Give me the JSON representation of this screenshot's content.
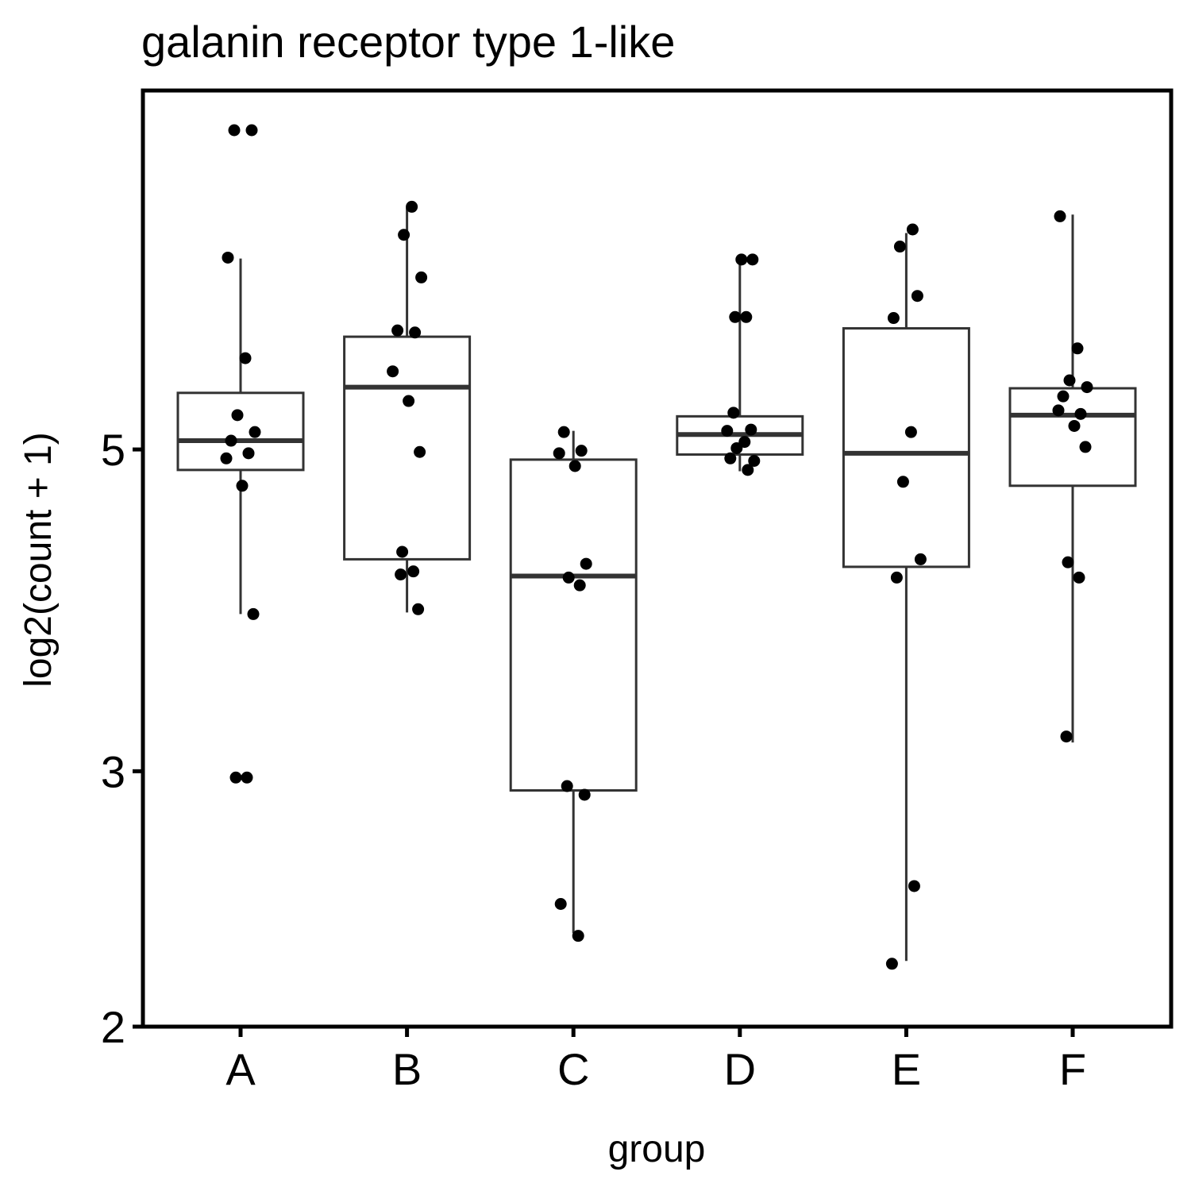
{
  "chart_data": {
    "type": "box",
    "title": "galanin receptor type 1-like",
    "xlabel": "group",
    "ylabel": "log2(count + 1)",
    "y_scale": "log",
    "ylim": [
      2,
      8.3
    ],
    "yticks": [
      2,
      3,
      5
    ],
    "categories": [
      "A",
      "B",
      "C",
      "D",
      "E",
      "F"
    ],
    "boxes": [
      {
        "group": "A",
        "whisker_low": 3.85,
        "q1": 4.84,
        "median": 5.07,
        "q3": 5.47,
        "whisker_high": 6.77
      },
      {
        "group": "B",
        "whisker_low": 3.86,
        "q1": 4.2,
        "median": 5.52,
        "q3": 5.98,
        "whisker_high": 7.34
      },
      {
        "group": "C",
        "whisker_low": 2.32,
        "q1": 2.91,
        "median": 4.09,
        "q3": 4.92,
        "whisker_high": 5.15
      },
      {
        "group": "D",
        "whisker_low": 4.83,
        "q1": 4.96,
        "median": 5.12,
        "q3": 5.27,
        "whisker_high": 6.75
      },
      {
        "group": "E",
        "whisker_low": 2.22,
        "q1": 4.15,
        "median": 4.97,
        "q3": 6.06,
        "whisker_high": 7.05
      },
      {
        "group": "F",
        "whisker_low": 3.14,
        "q1": 4.72,
        "median": 5.28,
        "q3": 5.51,
        "whisker_high": 7.26
      }
    ],
    "points": [
      {
        "group": "A",
        "values": [
          8.3,
          8.3,
          6.78,
          5.78,
          5.28,
          5.14,
          5.07,
          4.97,
          4.93,
          4.72,
          3.85,
          2.97,
          2.97
        ]
      },
      {
        "group": "B",
        "values": [
          7.35,
          7.03,
          6.57,
          6.04,
          6.02,
          5.66,
          5.4,
          4.98,
          4.25,
          4.12,
          4.1,
          3.88
        ]
      },
      {
        "group": "C",
        "values": [
          5.14,
          4.99,
          4.97,
          4.87,
          4.17,
          4.08,
          4.03,
          2.93,
          2.89,
          2.43,
          2.31
        ]
      },
      {
        "group": "D",
        "values": [
          6.76,
          6.76,
          6.17,
          6.17,
          5.3,
          5.16,
          5.15,
          5.06,
          5.01,
          4.91,
          4.93,
          4.84
        ]
      },
      {
        "group": "E",
        "values": [
          7.09,
          6.9,
          6.38,
          6.16,
          5.14,
          4.75,
          4.2,
          4.08,
          2.5,
          2.21
        ]
      },
      {
        "group": "F",
        "values": [
          7.24,
          5.87,
          5.58,
          5.52,
          5.44,
          5.29,
          5.32,
          5.19,
          5.02,
          4.18,
          4.08,
          3.17
        ]
      }
    ]
  }
}
